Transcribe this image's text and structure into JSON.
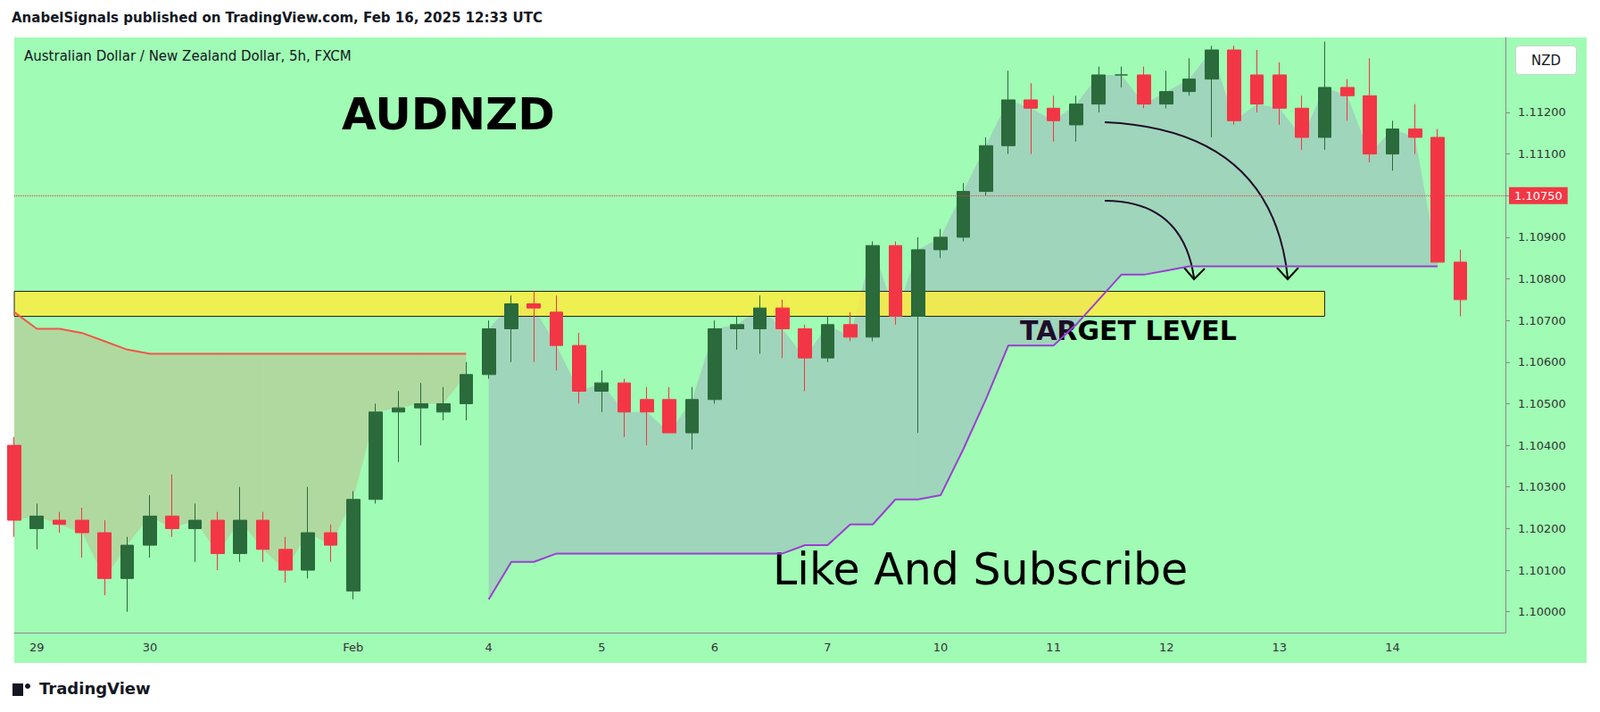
{
  "chart_data": {
    "type": "candlestick",
    "header": "AnabelSignals published on TradingView.com, Feb 16, 2025 12:33 UTC",
    "title": "Australian Dollar / New Zealand Dollar, 5h, FXCM",
    "symbol": "AUDNZD",
    "currency": "NZD",
    "caption": "Like And Subscribe",
    "footer": "TradingView",
    "categories": [
      null,
      "29",
      null,
      null,
      null,
      null,
      "30",
      null,
      null,
      null,
      null,
      null,
      null,
      null,
      null,
      "Feb",
      null,
      null,
      null,
      null,
      null,
      "4",
      null,
      null,
      null,
      null,
      "5",
      null,
      null,
      null,
      null,
      "6",
      null,
      null,
      null,
      null,
      "7",
      null,
      null,
      null,
      null,
      "10",
      null,
      null,
      null,
      null,
      "11",
      null,
      null,
      null,
      null,
      "12",
      null,
      null,
      null,
      null,
      "13",
      null,
      null,
      null,
      null,
      "14",
      null,
      null,
      null,
      null,
      null
    ],
    "series": [
      {
        "name": "AUDNZD",
        "type": "candlestick",
        "color": {
          "up": "#2a6a3b",
          "down": "#f23645"
        },
        "open": [
          1.104,
          1.102,
          1.1022,
          1.1022,
          1.1019,
          1.1008,
          1.1016,
          1.1023,
          1.102,
          1.1022,
          1.1014,
          1.1022,
          1.1015,
          1.101,
          1.1019,
          1.1005,
          1.1027,
          1.1048,
          1.1049,
          1.1048,
          1.105,
          1.1057,
          1.1068,
          1.1074,
          1.1072,
          1.1064,
          1.1053,
          1.1055,
          1.1051,
          1.1051,
          1.1043,
          1.1051,
          1.1068,
          1.1068,
          1.1073,
          1.1068,
          1.1061,
          1.1069,
          1.1066,
          1.1088,
          1.1071,
          1.1087,
          1.109,
          1.1101,
          1.1112,
          1.1123,
          1.1121,
          1.1117,
          1.1122,
          1.1129,
          1.1129,
          1.1122,
          1.1125,
          1.1128,
          1.1135,
          1.1129,
          1.1129,
          1.1121,
          1.1114,
          1.1126,
          1.1124,
          1.111,
          1.1116,
          1.1114,
          1.1084,
          null,
          null
        ],
        "high": [
          1.1042,
          1.1026,
          1.1024,
          1.1025,
          1.1022,
          1.1018,
          1.1028,
          1.1033,
          1.1026,
          1.1024,
          1.103,
          1.1024,
          1.1018,
          1.103,
          1.1021,
          1.1029,
          1.105,
          1.1053,
          1.1055,
          1.1054,
          1.106,
          1.107,
          1.1076,
          1.1077,
          1.1076,
          1.1067,
          1.1058,
          1.1056,
          1.1054,
          1.1054,
          1.1054,
          1.107,
          1.1071,
          1.1076,
          1.1075,
          1.1069,
          1.1071,
          1.1072,
          1.1089,
          1.1089,
          1.109,
          1.1092,
          1.1103,
          1.1114,
          1.113,
          1.1127,
          1.1124,
          1.1124,
          1.1131,
          1.1131,
          1.1131,
          1.113,
          1.1133,
          1.1136,
          1.1136,
          1.1135,
          1.1132,
          1.1124,
          1.1137,
          1.1128,
          1.1133,
          1.1118,
          1.1122,
          1.1116,
          1.1087,
          null,
          null
        ],
        "low": [
          1.1018,
          1.1015,
          1.1019,
          1.1013,
          1.1004,
          1.1,
          1.1013,
          1.1018,
          1.1012,
          1.101,
          1.1012,
          1.1012,
          1.1007,
          1.1008,
          1.1012,
          1.1003,
          1.1026,
          1.1036,
          1.104,
          1.1046,
          1.1046,
          1.1056,
          1.106,
          1.106,
          1.1058,
          1.105,
          1.1048,
          1.1042,
          1.104,
          1.1043,
          1.1039,
          1.105,
          1.1063,
          1.1062,
          1.1061,
          1.1053,
          1.106,
          1.1065,
          1.1065,
          1.1069,
          1.1043,
          1.1085,
          1.1089,
          1.11,
          1.111,
          1.111,
          1.1113,
          1.1113,
          1.112,
          1.1126,
          1.1121,
          1.1121,
          1.1124,
          1.1114,
          1.1117,
          1.112,
          1.1117,
          1.1111,
          1.1111,
          1.1118,
          1.1108,
          1.1106,
          1.111,
          1.1084,
          1.1071,
          null,
          null
        ],
        "close": [
          1.1022,
          1.1023,
          1.1021,
          1.1019,
          1.1008,
          1.1016,
          1.1023,
          1.102,
          1.1022,
          1.1014,
          1.1022,
          1.1015,
          1.101,
          1.1019,
          1.1016,
          1.1027,
          1.1048,
          1.1049,
          1.105,
          1.105,
          1.1057,
          1.1068,
          1.1074,
          1.1073,
          1.1064,
          1.1053,
          1.1055,
          1.1048,
          1.1048,
          1.1043,
          1.1051,
          1.1068,
          1.1069,
          1.1073,
          1.1068,
          1.1061,
          1.1069,
          1.1066,
          1.1088,
          1.1071,
          1.1087,
          1.109,
          1.1101,
          1.1112,
          1.1123,
          1.1121,
          1.1118,
          1.1122,
          1.1129,
          1.1129,
          1.1122,
          1.1125,
          1.1128,
          1.1135,
          1.1118,
          1.1122,
          1.1121,
          1.1114,
          1.1126,
          1.1124,
          1.111,
          1.1116,
          1.1114,
          1.1084,
          1.1075,
          null,
          null
        ]
      },
      {
        "type": "line",
        "color": "#f0564a",
        "values": [
          1.1072,
          1.1068,
          1.1068,
          1.1067,
          1.1065,
          1.1063,
          1.1062,
          1.1062,
          1.1062,
          1.1062,
          1.1062,
          1.1062,
          1.1062,
          1.1062,
          1.1062,
          1.1062,
          1.1062,
          1.1062,
          1.1062,
          1.1062,
          1.1062,
          null,
          null,
          null,
          null,
          null,
          null,
          null,
          null,
          null,
          null,
          null,
          null,
          null,
          null,
          null,
          null,
          null,
          null,
          null,
          null,
          null,
          null,
          null,
          null,
          null,
          null,
          null,
          null,
          null,
          null,
          null,
          null,
          null,
          null,
          null,
          null,
          null,
          null,
          null,
          null,
          null,
          null,
          null,
          null,
          null,
          null
        ]
      },
      {
        "type": "line",
        "color": "#9b3fd1",
        "values": [
          null,
          null,
          null,
          null,
          null,
          null,
          null,
          null,
          null,
          null,
          null,
          null,
          null,
          null,
          null,
          null,
          null,
          null,
          null,
          null,
          null,
          1.1003,
          1.1012,
          1.1012,
          1.1014,
          1.1014,
          1.1014,
          1.1014,
          1.1014,
          1.1014,
          1.1014,
          1.1014,
          1.1014,
          1.1014,
          1.1014,
          1.1016,
          1.1016,
          1.1021,
          1.1021,
          1.1027,
          1.1027,
          1.1028,
          1.1039,
          1.1051,
          1.1064,
          1.1064,
          1.1064,
          1.1069,
          1.1075,
          1.1081,
          1.1081,
          1.1082,
          1.1083,
          1.1083,
          1.1083,
          1.1083,
          1.1083,
          1.1083,
          1.1083,
          1.1083,
          1.1083,
          1.1083,
          1.1083,
          1.1083,
          null,
          null,
          null
        ]
      }
    ],
    "target_zone": {
      "label": "TARGET LEVEL",
      "low": 1.1071,
      "high": 1.1077,
      "start": 0,
      "end": 58
    },
    "last_price": {
      "value": 1.1075,
      "label": "1.10750"
    },
    "ylim": [
      1.0995,
      1.1138
    ],
    "yticks": [
      {
        "value": 1.1,
        "label": "1.10000"
      },
      {
        "value": 1.101,
        "label": "1.10100"
      },
      {
        "value": 1.102,
        "label": "1.10200"
      },
      {
        "value": 1.103,
        "label": "1.10300"
      },
      {
        "value": 1.104,
        "label": "1.10400"
      },
      {
        "value": 1.105,
        "label": "1.10500"
      },
      {
        "value": 1.106,
        "label": "1.10600"
      },
      {
        "value": 1.107,
        "label": "1.10700"
      },
      {
        "value": 1.108,
        "label": "1.10800"
      },
      {
        "value": 1.109,
        "label": "1.10900"
      },
      {
        "value": 1.11,
        "label": "1.11000"
      },
      {
        "value": 1.111,
        "label": "1.11100"
      },
      {
        "value": 1.112,
        "label": "1.11200"
      }
    ],
    "grid": false
  }
}
